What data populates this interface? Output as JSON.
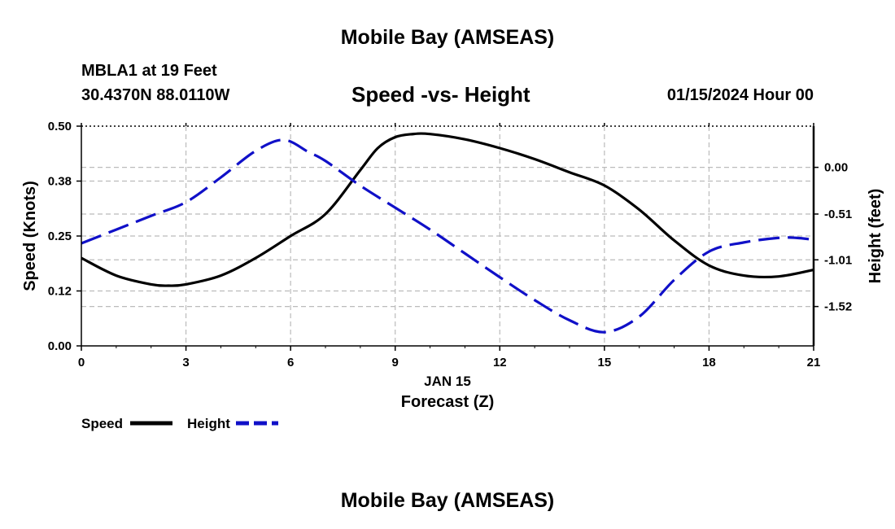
{
  "header": {
    "title": "Mobile Bay (AMSEAS)",
    "station": "MBLA1 at 19 Feet",
    "coords": "30.4370N  88.0110W",
    "chart_title": "Speed -vs- Height",
    "datetime": "01/15/2024 Hour 00"
  },
  "footer": {
    "title": "Mobile Bay (AMSEAS)"
  },
  "colors": {
    "speed": "#000000",
    "height": "#1010c8",
    "grid": "#bbbbbb"
  },
  "chart_data": {
    "type": "line",
    "title": "Speed -vs- Height",
    "xlabel_date": "JAN 15",
    "xlabel": "Forecast (Z)",
    "ylabel": "Speed (Knots)",
    "ylabel_right": "Height (feet)",
    "xlim": [
      0,
      21
    ],
    "ylim": [
      0,
      0.5
    ],
    "ylim_right": [
      -1.95,
      0.45
    ],
    "x_ticks": [
      0,
      3,
      6,
      9,
      12,
      15,
      18,
      21
    ],
    "x_tick_labels": [
      "0",
      "3",
      "6",
      "9",
      "12",
      "15",
      "18",
      "21"
    ],
    "y_ticks": [
      0,
      0.125,
      0.25,
      0.375,
      0.5
    ],
    "y_tick_labels": [
      "0.00",
      "0.12",
      "0.25",
      "0.38",
      "0.50"
    ],
    "y_right_ticks": [
      0.0,
      -0.51,
      -1.01,
      -1.52
    ],
    "y_right_tick_labels": [
      "0.00",
      "-0.51",
      "-1.01",
      "-1.52"
    ],
    "series": [
      {
        "name": "Speed",
        "axis": "left",
        "style": "solid",
        "x": [
          0,
          1,
          2,
          2.5,
          3,
          4,
          5,
          6,
          7,
          8,
          8.5,
          9,
          9.5,
          10,
          11,
          12,
          13,
          14,
          15,
          16,
          17,
          18,
          19,
          20,
          21
        ],
        "values": [
          0.2,
          0.16,
          0.14,
          0.137,
          0.14,
          0.16,
          0.2,
          0.25,
          0.3,
          0.4,
          0.45,
          0.475,
          0.482,
          0.482,
          0.47,
          0.45,
          0.425,
          0.395,
          0.365,
          0.31,
          0.24,
          0.183,
          0.16,
          0.158,
          0.173
        ]
      },
      {
        "name": "Height",
        "axis": "right",
        "style": "dashed",
        "x": [
          0,
          1,
          2,
          3,
          4,
          5,
          5.8,
          6.5,
          7,
          8,
          9,
          10,
          11,
          12,
          13,
          14,
          15,
          16,
          17,
          18,
          19,
          20,
          20.5,
          21
        ],
        "values": [
          -0.83,
          -0.68,
          -0.53,
          -0.38,
          -0.11,
          0.18,
          0.3,
          0.17,
          0.07,
          -0.2,
          -0.44,
          -0.68,
          -0.94,
          -1.2,
          -1.45,
          -1.67,
          -1.8,
          -1.63,
          -1.23,
          -0.92,
          -0.82,
          -0.77,
          -0.77,
          -0.79
        ]
      }
    ],
    "legend": {
      "position": "bottom-left",
      "items": [
        {
          "label": "Speed",
          "style": "solid"
        },
        {
          "label": "Height",
          "style": "dashed"
        }
      ]
    }
  }
}
